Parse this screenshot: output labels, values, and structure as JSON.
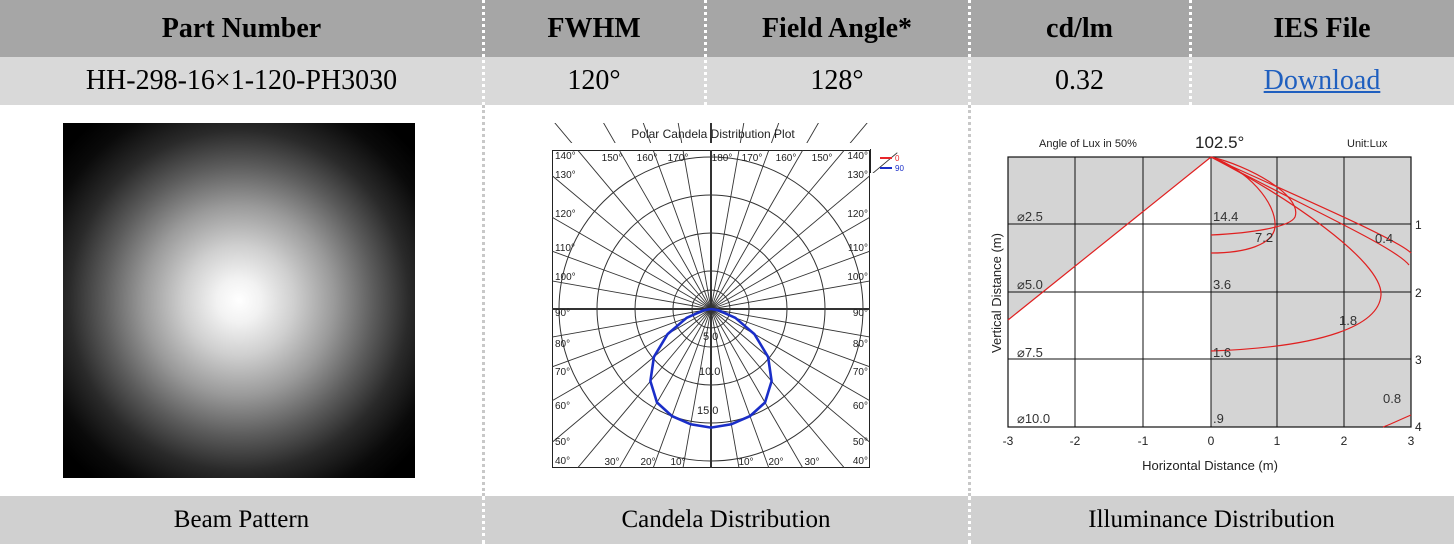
{
  "header": {
    "part_number": "Part Number",
    "fwhm": "FWHM",
    "field_angle": "Field Angle*",
    "cdlm": "cd/lm",
    "ies": "IES File"
  },
  "values": {
    "part_number": "HH-298-16×1-120-PH3030",
    "fwhm": "120°",
    "field_angle": "128°",
    "cdlm": "0.32",
    "ies_link": "Download"
  },
  "footer": {
    "beam": "Beam Pattern",
    "candela": "Candela Distribution",
    "illuminance": "Illuminance Distribution"
  },
  "polar_plot": {
    "title": "Polar Candela Distribution Plot",
    "legend": [
      {
        "label": "0",
        "color": "#e8262b"
      },
      {
        "label": "90",
        "color": "#1a2ec8"
      }
    ],
    "ring_labels": [
      "5.0",
      "10.0",
      "15.0"
    ],
    "edge_labels_left": [
      "140°",
      "130°",
      "120°",
      "110°",
      "100°",
      "90°",
      "80°",
      "70°",
      "60°",
      "50°",
      "40°"
    ],
    "edge_labels_top": [
      "150°",
      "160°",
      "170°",
      "180°",
      "170°",
      "160°",
      "150°"
    ],
    "edge_labels_bottom": [
      "30°",
      "20°",
      "10°",
      "10°",
      "20°",
      "30°"
    ]
  },
  "illuminance_plot": {
    "title_left": "Angle of Lux in 50%",
    "angle": "102.5°",
    "unit": "Unit:Lux",
    "xlabel": "Horizontal Distance (m)",
    "ylabel": "Vertical Distance (m)",
    "x_ticks": [
      "-3",
      "-2",
      "-1",
      "0",
      "1",
      "2",
      "3"
    ],
    "right_ticks": [
      "1",
      "2",
      "3",
      "4"
    ],
    "diameter_labels": [
      "⌀2.5",
      "⌀5.0",
      "⌀7.5",
      "⌀10.0"
    ],
    "center_lux": [
      "14.4",
      "3.6",
      "1.6",
      ".9"
    ],
    "contour_labels": [
      "7.2",
      "0.4",
      "1.8",
      "0.8"
    ],
    "line_color": "#e02020"
  },
  "chart_data": [
    {
      "type": "polar",
      "title": "Polar Candela Distribution Plot",
      "series": [
        {
          "name": "0",
          "values": []
        },
        {
          "name": "90",
          "angles_deg": [
            0,
            10,
            20,
            30,
            40,
            50,
            60,
            70,
            80,
            90
          ],
          "values": [
            15.6,
            15.4,
            15.0,
            14.2,
            12.4,
            9.8,
            6.6,
            3.4,
            1.0,
            0
          ]
        }
      ],
      "rlim": [
        0,
        20
      ]
    },
    {
      "type": "line",
      "title": "Angle of Lux in 50%",
      "xlabel": "Horizontal Distance (m)",
      "ylabel": "Vertical Distance (m)",
      "xlim": [
        -3,
        3
      ],
      "ylim": [
        0,
        4
      ],
      "beam_angle_deg": 102.5,
      "unit": "Lux",
      "center_illuminance": [
        {
          "distance_m": 1,
          "lux": 14.4,
          "diameter_m": 2.5
        },
        {
          "distance_m": 2,
          "lux": 3.6,
          "diameter_m": 5.0
        },
        {
          "distance_m": 3,
          "lux": 1.6,
          "diameter_m": 7.5
        },
        {
          "distance_m": 4,
          "lux": 0.9,
          "diameter_m": 10.0
        }
      ],
      "contours": [
        7.2,
        1.8,
        0.8,
        0.4
      ]
    }
  ]
}
